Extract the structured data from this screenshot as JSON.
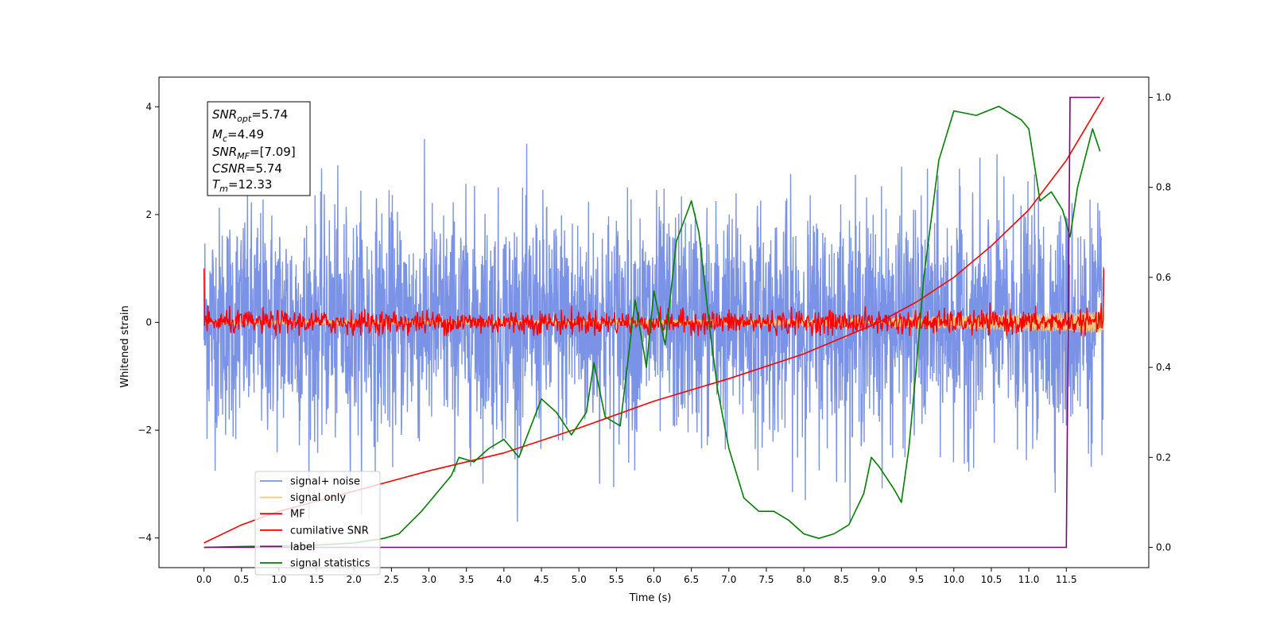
{
  "chart_data": {
    "type": "line",
    "xlabel": "Time (s)",
    "ylabel": "Whitened strain",
    "xlim": [
      -0.6,
      12.6
    ],
    "ylim": [
      -4.55,
      4.55
    ],
    "y2lim": [
      -0.045,
      1.045
    ],
    "xticks": [
      "0.0",
      "0.5",
      "1.0",
      "1.5",
      "2.0",
      "2.5",
      "3.0",
      "3.5",
      "4.0",
      "4.5",
      "5.0",
      "5.5",
      "6.0",
      "6.5",
      "7.0",
      "7.5",
      "8.0",
      "8.5",
      "9.0",
      "9.5",
      "10.0",
      "10.5",
      "11.0",
      "11.5"
    ],
    "yticks": [
      "4",
      "2",
      "0",
      "−2",
      "−4"
    ],
    "y2ticks": [
      "1.0",
      "0.8",
      "0.6",
      "0.4",
      "0.2",
      "0.0"
    ],
    "grid": false,
    "legend_position": "lower-left",
    "info_box": {
      "snr_opt": "=5.74",
      "mc": "=4.49",
      "snr_mf": "=[7.09]",
      "csnr": "=5.74",
      "tm": "=12.33"
    },
    "series": [
      {
        "name": "signal+ noise",
        "color": "#7b93e6",
        "description": "whitened noisy strain, roughly symmetric around 0 with amplitude ~±2 and spikes to ±3.7",
        "x_range": [
          0.0,
          12.0
        ],
        "envelope": [
          -3.7,
          3.4
        ]
      },
      {
        "name": "signal only",
        "color": "#ffc66d",
        "description": "chirp signal amplitude growing toward the end",
        "x": [
          0.0,
          2.0,
          4.0,
          6.0,
          8.0,
          9.0,
          10.0,
          11.0,
          12.0
        ],
        "amplitude": [
          0.03,
          0.035,
          0.04,
          0.05,
          0.07,
          0.09,
          0.12,
          0.16,
          0.2
        ]
      },
      {
        "name": "MF",
        "color": "#ff0000",
        "description": "matched filter output fluctuating about 0, spikes to 1.0 at both ends",
        "x_range": [
          0.0,
          12.0
        ],
        "amplitude": 0.25
      },
      {
        "name": "cumilative SNR",
        "color": "#ff0000",
        "axis": "right",
        "x": [
          0.0,
          0.5,
          1.0,
          2.0,
          3.0,
          4.0,
          5.0,
          6.0,
          7.0,
          8.0,
          9.0,
          9.5,
          10.0,
          10.5,
          11.0,
          11.5,
          12.0
        ],
        "values": [
          0.01,
          0.05,
          0.08,
          0.125,
          0.17,
          0.21,
          0.265,
          0.325,
          0.375,
          0.43,
          0.5,
          0.545,
          0.6,
          0.67,
          0.75,
          0.86,
          1.0
        ]
      },
      {
        "name": "label",
        "color": "#800080",
        "axis": "right",
        "x": [
          0.0,
          11.5,
          11.55,
          11.95
        ],
        "values": [
          0.0,
          0.0,
          1.0,
          1.0
        ]
      },
      {
        "name": "signal statistics",
        "color": "#008000",
        "axis": "right",
        "x": [
          0.0,
          0.5,
          1.0,
          1.5,
          2.0,
          2.4,
          2.6,
          2.9,
          3.1,
          3.3,
          3.4,
          3.6,
          3.8,
          4.0,
          4.2,
          4.5,
          4.7,
          4.9,
          5.1,
          5.2,
          5.35,
          5.55,
          5.75,
          5.9,
          6.0,
          6.15,
          6.3,
          6.5,
          6.6,
          6.75,
          6.85,
          7.0,
          7.2,
          7.4,
          7.6,
          7.8,
          8.0,
          8.2,
          8.4,
          8.6,
          8.8,
          8.9,
          9.0,
          9.2,
          9.3,
          9.4,
          9.5,
          9.6,
          9.8,
          10.0,
          10.3,
          10.6,
          10.9,
          11.0,
          11.15,
          11.3,
          11.45,
          11.55,
          11.65,
          11.85,
          11.95
        ],
        "values": [
          0.0,
          0.002,
          0.003,
          0.005,
          0.01,
          0.02,
          0.03,
          0.08,
          0.12,
          0.16,
          0.2,
          0.19,
          0.22,
          0.24,
          0.2,
          0.33,
          0.3,
          0.25,
          0.3,
          0.41,
          0.29,
          0.27,
          0.55,
          0.4,
          0.57,
          0.45,
          0.68,
          0.77,
          0.7,
          0.48,
          0.35,
          0.22,
          0.11,
          0.08,
          0.08,
          0.06,
          0.03,
          0.02,
          0.03,
          0.05,
          0.12,
          0.2,
          0.18,
          0.13,
          0.1,
          0.22,
          0.4,
          0.6,
          0.86,
          0.97,
          0.96,
          0.98,
          0.95,
          0.93,
          0.77,
          0.79,
          0.75,
          0.69,
          0.8,
          0.93,
          0.88
        ]
      }
    ]
  }
}
